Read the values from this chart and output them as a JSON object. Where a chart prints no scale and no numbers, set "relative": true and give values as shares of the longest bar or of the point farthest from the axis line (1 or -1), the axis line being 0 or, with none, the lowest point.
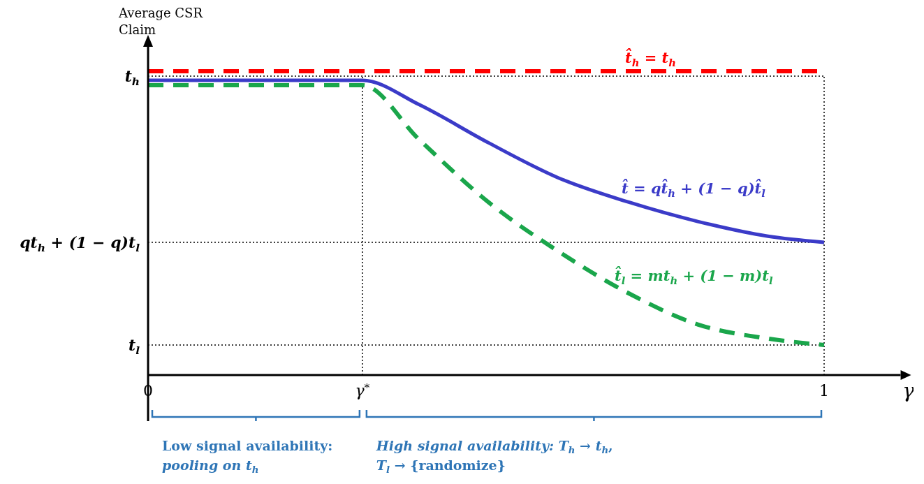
{
  "chart_data": {
    "type": "line",
    "relative": true,
    "ylabel": "Average CSR Claim",
    "xlabel": "γ",
    "xlim": [
      0,
      1.108
    ],
    "xticks": [
      0,
      {
        "value": 0.317,
        "label": "γ$^{*}$"
      },
      1
    ],
    "legend": false,
    "marker": "none",
    "grid": false,
    "series": [
      {
        "name": "t̂$_{h}$ = t$_{h}$",
        "color": "#ff0000",
        "line_style": "dashed",
        "x": [
          0,
          1
        ],
        "values": [
          1,
          1
        ]
      },
      {
        "name": "t̂ = qt̂$_{h}$ + (1 − q)t̂$_{l}$",
        "color": "#3b3bc8",
        "line_style": "solid",
        "x": [
          0,
          0.317,
          0.401,
          0.504,
          0.607,
          0.711,
          0.814,
          0.917,
          1
        ],
        "values": [
          0.97,
          0.97,
          0.89,
          0.764,
          0.649,
          0.569,
          0.505,
          0.457,
          0.437
        ]
      },
      {
        "name": "t̂$_{l}$ = mt$_{h}$ + (1 − m)t$_{l}$",
        "color": "#1aa64b",
        "line_style": "dashed",
        "x": [
          0,
          0.317,
          0.401,
          0.504,
          0.607,
          0.711,
          0.814,
          0.917,
          1
        ],
        "values": [
          0.954,
          0.954,
          0.775,
          0.568,
          0.407,
          0.269,
          0.166,
          0.12,
          0.099
        ]
      }
    ],
    "ref_lines": [
      {
        "axis": "y",
        "value": 0.984,
        "label": "t$_{h}$",
        "color": "#000000",
        "line_style": "dotted"
      },
      {
        "axis": "y",
        "value": 0.437,
        "label": "qt$_{h}$ + (1 − q)t$_{l}$",
        "color": "#000000",
        "line_style": "dotted"
      },
      {
        "axis": "y",
        "value": 0.099,
        "label": "t$_{l}$",
        "color": "#000000",
        "line_style": "dotted"
      },
      {
        "axis": "x",
        "value": 0.317,
        "color": "#000000",
        "line_style": "dotted"
      },
      {
        "axis": "x",
        "value": 1,
        "color": "#000000",
        "line_style": "dotted"
      }
    ],
    "annotations": [
      "Low signal availability: pooling on t$_{h}$",
      "High signal availability: T$_{h}$ → t$_{h}$, T$_{l}$ → {randomize}"
    ]
  }
}
